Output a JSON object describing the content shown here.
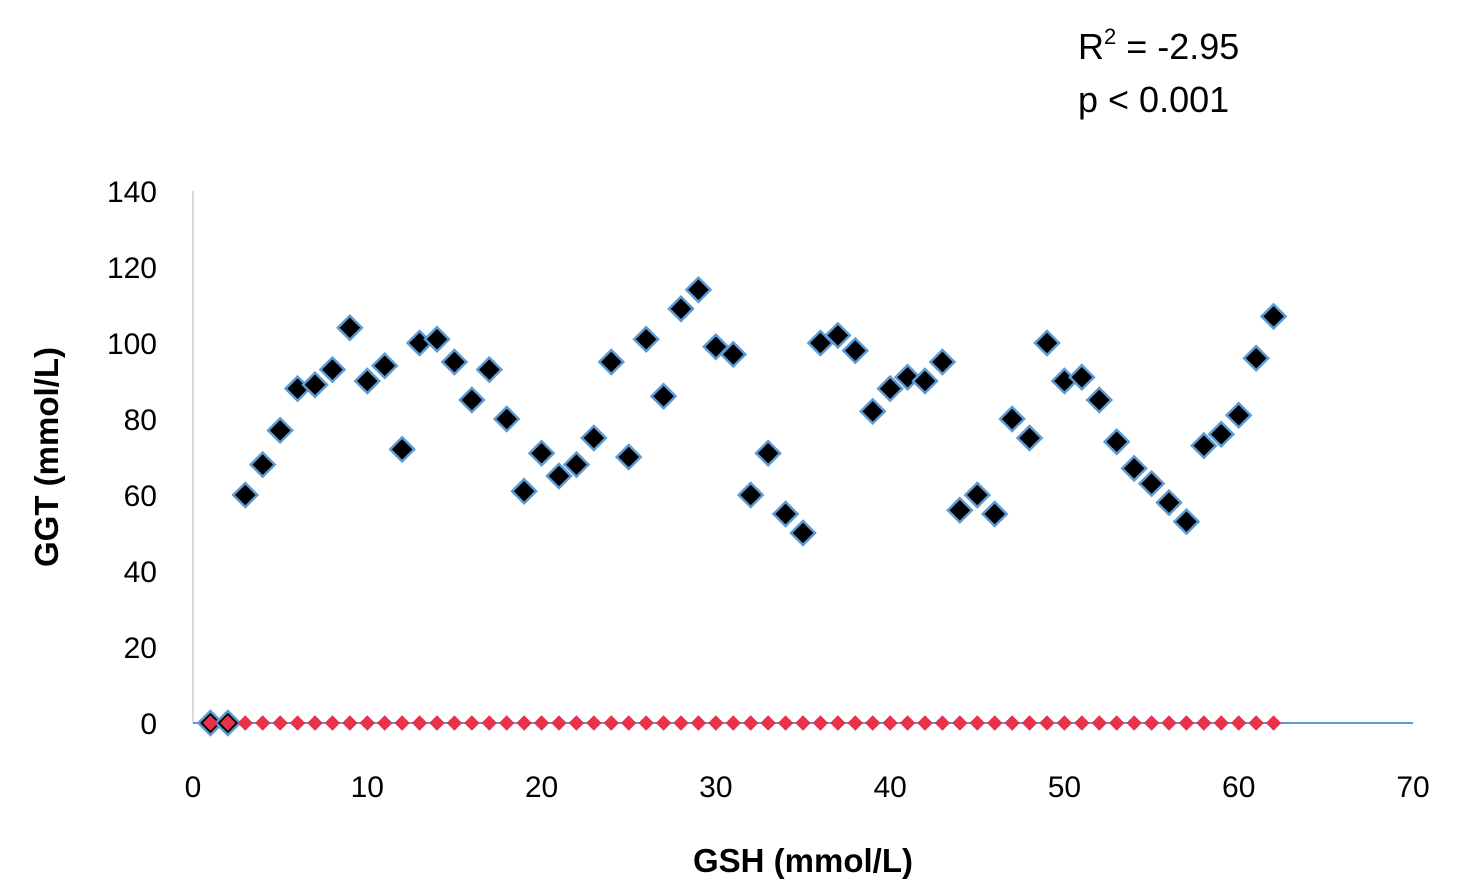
{
  "chart_data": {
    "type": "scatter",
    "xlabel": "GSH (mmol/L)",
    "ylabel": "GGT (mmol/L)",
    "xlim": [
      0,
      70
    ],
    "ylim": [
      0,
      140
    ],
    "x_ticks": [
      "0",
      "10",
      "20",
      "30",
      "40",
      "50",
      "60",
      "70"
    ],
    "y_ticks": [
      "0",
      "20",
      "40",
      "60",
      "80",
      "100",
      "120",
      "140"
    ],
    "grid": false,
    "legend": "none",
    "annotations": {
      "r2_prefix": "R",
      "r2_sup": "2",
      "r2_suffix": " = -2.95",
      "p_value": "p < 0.001"
    },
    "series": [
      {
        "color": "#000000",
        "edge_color": "#5b9bd5",
        "marker": "diamond",
        "x": [
          1,
          2,
          3,
          4,
          5,
          6,
          7,
          8,
          9,
          10,
          11,
          12,
          13,
          14,
          15,
          16,
          17,
          18,
          19,
          20,
          21,
          22,
          23,
          24,
          25,
          26,
          27,
          28,
          29,
          30,
          31,
          32,
          33,
          34,
          35,
          36,
          37,
          38,
          39,
          40,
          41,
          42,
          43,
          44,
          45,
          46,
          47,
          48,
          49,
          50,
          51,
          52,
          53,
          54,
          55,
          56,
          57,
          58,
          59,
          60,
          61,
          62
        ],
        "y": [
          0,
          0,
          60,
          68,
          77,
          88,
          89,
          93,
          104,
          90,
          94,
          72,
          100,
          101,
          95,
          85,
          93,
          80,
          61,
          71,
          65,
          68,
          75,
          95,
          70,
          101,
          86,
          109,
          114,
          99,
          97,
          60,
          71,
          55,
          50,
          100,
          102,
          98,
          82,
          88,
          91,
          90,
          95,
          56,
          60,
          55,
          80,
          75,
          100,
          90,
          91,
          85,
          74,
          67,
          63,
          58,
          53,
          73,
          76,
          81,
          96,
          107
        ]
      },
      {
        "color": "#e8324a",
        "marker": "diamond",
        "x": [
          1,
          2,
          3,
          4,
          5,
          6,
          7,
          8,
          9,
          10,
          11,
          12,
          13,
          14,
          15,
          16,
          17,
          18,
          19,
          20,
          21,
          22,
          23,
          24,
          25,
          26,
          27,
          28,
          29,
          30,
          31,
          32,
          33,
          34,
          35,
          36,
          37,
          38,
          39,
          40,
          41,
          42,
          43,
          44,
          45,
          46,
          47,
          48,
          49,
          50,
          51,
          52,
          53,
          54,
          55,
          56,
          57,
          58,
          59,
          60,
          61,
          62
        ],
        "y": [
          0,
          0,
          0,
          0,
          0,
          0,
          0,
          0,
          0,
          0,
          0,
          0,
          0,
          0,
          0,
          0,
          0,
          0,
          0,
          0,
          0,
          0,
          0,
          0,
          0,
          0,
          0,
          0,
          0,
          0,
          0,
          0,
          0,
          0,
          0,
          0,
          0,
          0,
          0,
          0,
          0,
          0,
          0,
          0,
          0,
          0,
          0,
          0,
          0,
          0,
          0,
          0,
          0,
          0,
          0,
          0,
          0,
          0,
          0,
          0,
          0,
          0
        ]
      }
    ]
  }
}
